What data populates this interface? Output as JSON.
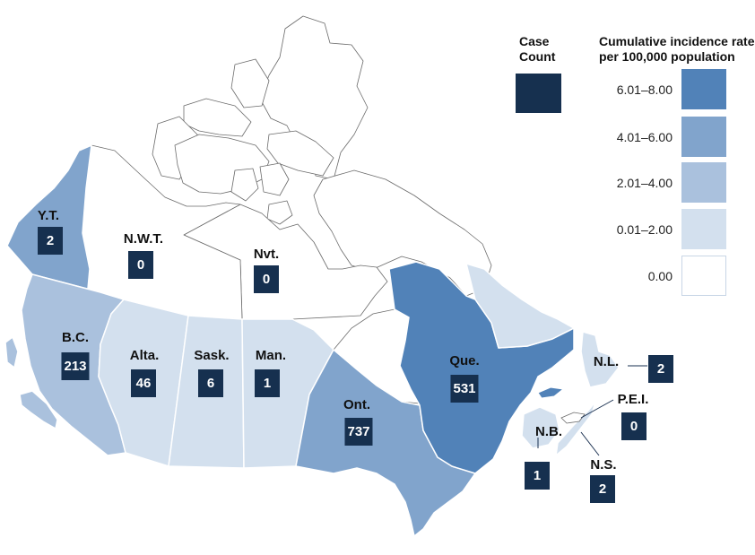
{
  "legend": {
    "case_count_title": [
      "Case",
      "Count"
    ],
    "rate_title": [
      "Cumulative incidence rate",
      "per 100,000 population"
    ],
    "case_swatch_color": "#16304f",
    "bins": [
      {
        "label": "6.01–8.00",
        "color": "#5182b8"
      },
      {
        "label": "4.01–6.00",
        "color": "#81a4cc"
      },
      {
        "label": "2.01–4.00",
        "color": "#aac1dd"
      },
      {
        "label": "0.01–2.00",
        "color": "#d3e0ee"
      },
      {
        "label": "0.00",
        "color": "#ffffff"
      }
    ]
  },
  "provinces": {
    "yt": {
      "label": "Y.T.",
      "count": "2",
      "bin": 1
    },
    "nwt": {
      "label": "N.W.T.",
      "count": "0",
      "bin": 4
    },
    "nvt": {
      "label": "Nvt.",
      "count": "0",
      "bin": 4
    },
    "bc": {
      "label": "B.C.",
      "count": "213",
      "bin": 2
    },
    "ab": {
      "label": "Alta.",
      "count": "46",
      "bin": 3
    },
    "sk": {
      "label": "Sask.",
      "count": "6",
      "bin": 3
    },
    "mb": {
      "label": "Man.",
      "count": "1",
      "bin": 3
    },
    "on": {
      "label": "Ont.",
      "count": "737",
      "bin": 1
    },
    "qc": {
      "label": "Que.",
      "count": "531",
      "bin": 0
    },
    "nl": {
      "label": "N.L.",
      "count": "2",
      "bin": 3
    },
    "pei": {
      "label": "P.E.I.",
      "count": "0",
      "bin": 4
    },
    "nb": {
      "label": "N.B.",
      "count": "1",
      "bin": 3
    },
    "ns": {
      "label": "N.S.",
      "count": "2",
      "bin": 3
    }
  }
}
